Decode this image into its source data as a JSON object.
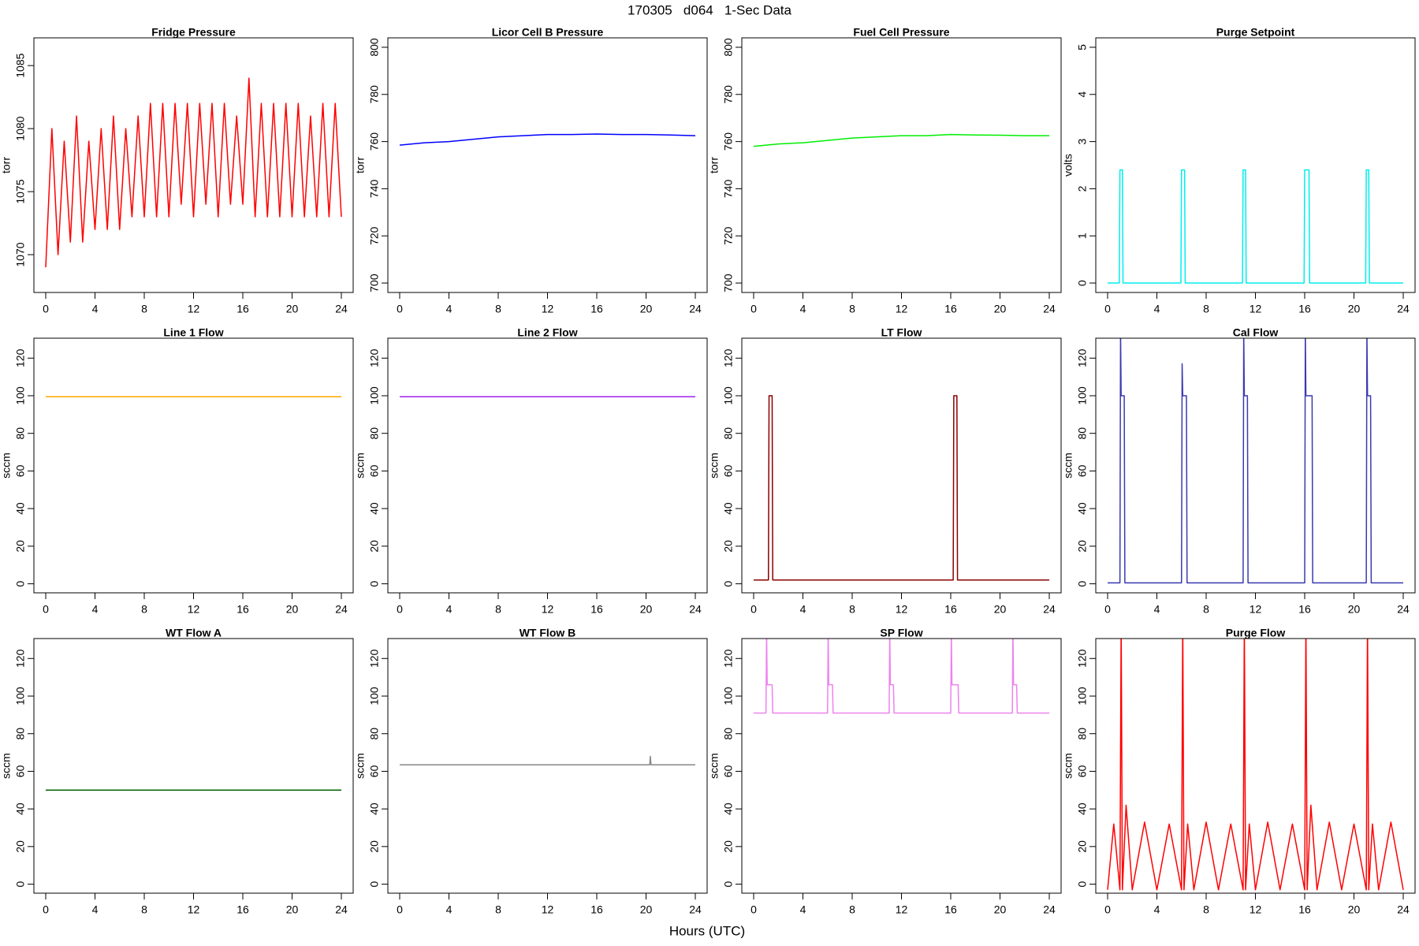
{
  "title": "170305   d064   1-Sec Data",
  "xlabel": "Hours (UTC)",
  "chart_data": [
    {
      "type": "line",
      "title": "Fridge Pressure",
      "ylabel": "torr",
      "color": "#ff0000",
      "xlim": [
        -0.96,
        24.96
      ],
      "xticks": [
        0,
        4,
        8,
        12,
        16,
        20,
        24
      ],
      "ylim": [
        1067.0,
        1087.2
      ],
      "yticks": [
        1070,
        1075,
        1080,
        1085
      ],
      "x": [
        0,
        0.5,
        1,
        1.5,
        2,
        2.5,
        3,
        3.5,
        4,
        4.5,
        5,
        5.5,
        6,
        6.5,
        7,
        7.5,
        8,
        8.5,
        9,
        9.5,
        10,
        10.5,
        11,
        11.5,
        12,
        12.5,
        13,
        13.5,
        14,
        14.5,
        15,
        15.5,
        16,
        16.5,
        17,
        17.5,
        18,
        18.5,
        19,
        19.5,
        20,
        20.5,
        21,
        21.5,
        22,
        22.5,
        23,
        23.5,
        24
      ],
      "values": [
        1069,
        1080,
        1070,
        1079,
        1071,
        1081,
        1071,
        1079,
        1072,
        1080,
        1072,
        1081,
        1072,
        1080,
        1073,
        1081,
        1073,
        1082,
        1073,
        1082,
        1073,
        1082,
        1074,
        1082,
        1073,
        1082,
        1074,
        1082,
        1073,
        1082,
        1074,
        1081,
        1074,
        1084,
        1073,
        1082,
        1073,
        1082,
        1073,
        1082,
        1073,
        1082,
        1073,
        1081,
        1073,
        1082,
        1073,
        1082,
        1073
      ]
    },
    {
      "type": "line",
      "title": "Licor Cell B Pressure",
      "ylabel": "torr",
      "color": "#0000ff",
      "xlim": [
        -0.96,
        24.96
      ],
      "xticks": [
        0,
        4,
        8,
        12,
        16,
        20,
        24
      ],
      "ylim": [
        696,
        804
      ],
      "yticks": [
        700,
        720,
        740,
        760,
        780,
        800
      ],
      "x": [
        0,
        2,
        4,
        6,
        8,
        10,
        12,
        14,
        16,
        18,
        20,
        22,
        24
      ],
      "values": [
        758.5,
        759.5,
        760,
        761,
        762,
        762.5,
        763,
        763,
        763.2,
        763,
        763,
        762.8,
        762.5
      ]
    },
    {
      "type": "line",
      "title": "Fuel Cell Pressure",
      "ylabel": "torr",
      "color": "#00ee00",
      "xlim": [
        -0.96,
        24.96
      ],
      "xticks": [
        0,
        4,
        8,
        12,
        16,
        20,
        24
      ],
      "ylim": [
        696,
        804
      ],
      "yticks": [
        700,
        720,
        740,
        760,
        780,
        800
      ],
      "x": [
        0,
        2,
        4,
        6,
        8,
        10,
        12,
        14,
        16,
        18,
        20,
        22,
        24
      ],
      "values": [
        758,
        759,
        759.5,
        760.5,
        761.5,
        762,
        762.5,
        762.5,
        763,
        762.8,
        762.7,
        762.5,
        762.5
      ]
    },
    {
      "type": "line",
      "title": "Purge Setpoint",
      "ylabel": "volts",
      "color": "#00eeee",
      "xlim": [
        -0.96,
        24.96
      ],
      "xticks": [
        0,
        4,
        8,
        12,
        16,
        20,
        24
      ],
      "ylim": [
        -0.2,
        5.2
      ],
      "yticks": [
        0,
        1,
        2,
        3,
        4,
        5
      ],
      "x": [
        0,
        0.95,
        1.0,
        1.2,
        1.25,
        5.95,
        6.0,
        6.25,
        6.3,
        10.95,
        11.0,
        11.2,
        11.25,
        15.95,
        16.0,
        16.35,
        16.4,
        20.95,
        21.0,
        21.2,
        21.25,
        24
      ],
      "values": [
        0,
        0,
        2.4,
        2.4,
        0,
        0,
        2.4,
        2.4,
        0,
        0,
        2.4,
        2.4,
        0,
        0,
        2.4,
        2.4,
        0,
        0,
        2.4,
        2.4,
        0,
        0
      ]
    },
    {
      "type": "line",
      "title": "Line 1 Flow",
      "ylabel": "sccm",
      "color": "#ffa500",
      "xlim": [
        -0.96,
        24.96
      ],
      "xticks": [
        0,
        4,
        8,
        12,
        16,
        20,
        24
      ],
      "ylim": [
        -4.8,
        130.6
      ],
      "yticks": [
        0,
        20,
        40,
        60,
        80,
        100,
        120
      ],
      "x": [
        0,
        24
      ],
      "values": [
        99.5,
        99.5
      ]
    },
    {
      "type": "line",
      "title": "Line 2 Flow",
      "ylabel": "sccm",
      "color": "#a020f0",
      "xlim": [
        -0.96,
        24.96
      ],
      "xticks": [
        0,
        4,
        8,
        12,
        16,
        20,
        24
      ],
      "ylim": [
        -4.8,
        130.6
      ],
      "yticks": [
        0,
        20,
        40,
        60,
        80,
        100,
        120
      ],
      "x": [
        0,
        24
      ],
      "values": [
        99.5,
        99.5
      ]
    },
    {
      "type": "line",
      "title": "LT Flow",
      "ylabel": "sccm",
      "color": "#8b0000",
      "xlim": [
        -0.96,
        24.96
      ],
      "xticks": [
        0,
        4,
        8,
        12,
        16,
        20,
        24
      ],
      "ylim": [
        -4.8,
        130.6
      ],
      "yticks": [
        0,
        20,
        40,
        60,
        80,
        100,
        120
      ],
      "x": [
        0,
        1.2,
        1.25,
        1.5,
        1.55,
        16.2,
        16.25,
        16.5,
        16.55,
        24
      ],
      "values": [
        2,
        2,
        100,
        100,
        2,
        2,
        100,
        100,
        2,
        2
      ]
    },
    {
      "type": "line",
      "title": "Cal Flow",
      "ylabel": "sccm",
      "color": "#3a3ab0",
      "xlim": [
        -0.96,
        24.96
      ],
      "xticks": [
        0,
        4,
        8,
        12,
        16,
        20,
        24
      ],
      "ylim": [
        -4.8,
        130.6
      ],
      "yticks": [
        0,
        20,
        40,
        60,
        80,
        100,
        120
      ],
      "x": [
        0,
        1.0,
        1.05,
        1.1,
        1.35,
        1.4,
        6.0,
        6.05,
        6.1,
        6.4,
        6.45,
        11.0,
        11.05,
        11.1,
        11.35,
        11.4,
        16.0,
        16.05,
        16.1,
        16.6,
        16.65,
        21.0,
        21.05,
        21.1,
        21.35,
        21.4,
        24
      ],
      "values": [
        0.5,
        0.5,
        135,
        100,
        100,
        0.5,
        0.5,
        117,
        100,
        100,
        0.5,
        0.5,
        135,
        100,
        100,
        0.5,
        0.5,
        135,
        100,
        100,
        0.5,
        0.5,
        135,
        100,
        100,
        0.5,
        0.5
      ]
    },
    {
      "type": "line",
      "title": "WT Flow A",
      "ylabel": "sccm",
      "color": "#006400",
      "xlim": [
        -0.96,
        24.96
      ],
      "xticks": [
        0,
        4,
        8,
        12,
        16,
        20,
        24
      ],
      "ylim": [
        -4.8,
        130.6
      ],
      "yticks": [
        0,
        20,
        40,
        60,
        80,
        100,
        120
      ],
      "x": [
        0,
        24
      ],
      "values": [
        50,
        50
      ]
    },
    {
      "type": "line",
      "title": "WT Flow B",
      "ylabel": "sccm",
      "color": "#888888",
      "xlim": [
        -0.96,
        24.96
      ],
      "xticks": [
        0,
        4,
        8,
        12,
        16,
        20,
        24
      ],
      "ylim": [
        -4.8,
        130.6
      ],
      "yticks": [
        0,
        20,
        40,
        60,
        80,
        100,
        120
      ],
      "x": [
        0,
        20.3,
        20.35,
        20.4,
        24
      ],
      "values": [
        63.5,
        63.5,
        68,
        63.5,
        63.5
      ]
    },
    {
      "type": "line",
      "title": "SP Flow",
      "ylabel": "sccm",
      "color": "#ee82ee",
      "xlim": [
        -0.96,
        24.96
      ],
      "xticks": [
        0,
        4,
        8,
        12,
        16,
        20,
        24
      ],
      "ylim": [
        -4.8,
        130.6
      ],
      "yticks": [
        0,
        20,
        40,
        60,
        80,
        100,
        120
      ],
      "x": [
        0,
        1.0,
        1.05,
        1.1,
        1.5,
        1.55,
        6.0,
        6.05,
        6.1,
        6.4,
        6.45,
        11.0,
        11.05,
        11.1,
        11.35,
        11.4,
        16.0,
        16.05,
        16.1,
        16.6,
        16.65,
        21.0,
        21.05,
        21.1,
        21.35,
        21.4,
        24
      ],
      "values": [
        91,
        91,
        135,
        106,
        106,
        91,
        91,
        135,
        106,
        106,
        91,
        91,
        135,
        106,
        106,
        91,
        91,
        135,
        106,
        106,
        91,
        91,
        135,
        106,
        106,
        91,
        91
      ]
    },
    {
      "type": "line",
      "title": "Purge Flow",
      "ylabel": "sccm",
      "color": "#ff0000",
      "xlim": [
        -0.96,
        24.96
      ],
      "xticks": [
        0,
        4,
        8,
        12,
        16,
        20,
        24
      ],
      "ylim": [
        -4.8,
        130.6
      ],
      "yticks": [
        0,
        20,
        40,
        60,
        80,
        100,
        120
      ],
      "x": [
        0,
        0.5,
        1,
        1.1,
        1.2,
        1.5,
        2,
        3,
        4,
        5,
        6,
        6.1,
        6.2,
        6.5,
        7,
        8,
        9,
        10,
        11,
        11.1,
        11.2,
        11.5,
        12,
        13,
        14,
        15,
        16,
        16.1,
        16.2,
        16.5,
        17,
        18,
        19,
        20,
        21,
        21.1,
        21.2,
        21.5,
        22,
        23,
        24
      ],
      "values": [
        -3,
        32,
        -3,
        140,
        -3,
        42,
        -3,
        33,
        -3,
        32,
        -3,
        140,
        -3,
        32,
        -3,
        33,
        -3,
        32,
        -3,
        140,
        -3,
        32,
        -3,
        33,
        -3,
        32,
        -3,
        140,
        -3,
        42,
        -3,
        33,
        -3,
        32,
        -3,
        140,
        -3,
        32,
        -3,
        33,
        -3
      ]
    }
  ]
}
